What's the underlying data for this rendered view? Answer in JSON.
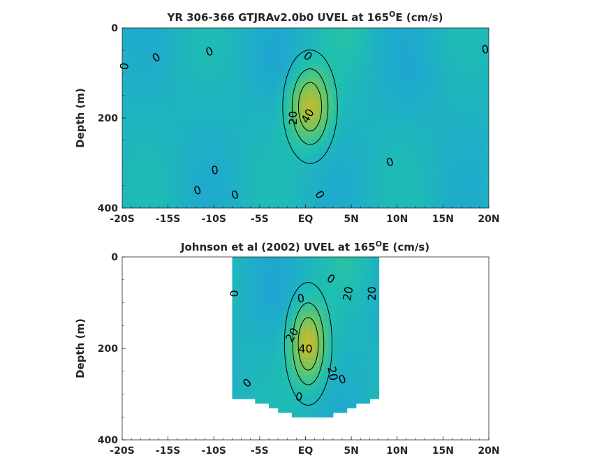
{
  "chart_data": [
    {
      "type": "heatmap",
      "title": "YR 306-366 GTJRAv2.0b0 UVEL at 165",
      "title_sup": "O",
      "title_suffix": "E (cm/s)",
      "xlabel": "",
      "ylabel": "Depth (m)",
      "xlim": [
        -20,
        20
      ],
      "ylim": [
        0,
        400
      ],
      "y_reversed": true,
      "x_ticks": [
        -20,
        -15,
        -10,
        -5,
        0,
        5,
        10,
        15,
        20
      ],
      "x_tick_labels": [
        "-20S",
        "-15S",
        "-10S",
        "-5S",
        "EQ",
        "5N",
        "10N",
        "15N",
        "20N"
      ],
      "y_ticks": [
        0,
        200,
        400
      ],
      "y_tick_labels": [
        "0",
        "200",
        "400"
      ],
      "colormap": {
        "min": -40,
        "max": 60,
        "colors": [
          "#3e26a8",
          "#1fa1d8",
          "#1fbfb0",
          "#62c86a",
          "#bcbc32",
          "#f9fb0f"
        ]
      },
      "core": {
        "lon": 0.5,
        "depth": 175,
        "max_speed": 48,
        "width_lon": 2.3,
        "width_depth": 75
      },
      "contour_labels": [
        {
          "text": "0",
          "lon": -19.8,
          "depth": 85,
          "angle": -80
        },
        {
          "text": "0",
          "lon": -16.3,
          "depth": 65,
          "angle": -30
        },
        {
          "text": "0",
          "lon": -10.5,
          "depth": 52,
          "angle": -20
        },
        {
          "text": "0",
          "lon": 0.3,
          "depth": 62,
          "angle": 40
        },
        {
          "text": "20",
          "lon": -1.4,
          "depth": 200,
          "angle": -90
        },
        {
          "text": "40",
          "lon": 0.2,
          "depth": 195,
          "angle": -60
        },
        {
          "text": "0",
          "lon": -9.9,
          "depth": 315,
          "angle": -10
        },
        {
          "text": "0",
          "lon": -11.8,
          "depth": 360,
          "angle": -20
        },
        {
          "text": "0",
          "lon": -7.7,
          "depth": 370,
          "angle": -20
        },
        {
          "text": "0",
          "lon": 1.6,
          "depth": 370,
          "angle": 60
        },
        {
          "text": "0",
          "lon": 9.2,
          "depth": 297,
          "angle": -15
        },
        {
          "text": "0",
          "lon": 19.6,
          "depth": 47,
          "angle": -10
        }
      ]
    },
    {
      "type": "heatmap",
      "title": "Johnson et al (2002) UVEL at 165",
      "title_sup": "O",
      "title_suffix": "E (cm/s)",
      "xlabel": "",
      "ylabel": "Depth (m)",
      "xlim": [
        -20,
        20
      ],
      "ylim": [
        0,
        400
      ],
      "y_reversed": true,
      "data_lon_range": [
        -8,
        8
      ],
      "x_ticks": [
        -20,
        -15,
        -10,
        -5,
        0,
        5,
        10,
        15,
        20
      ],
      "x_tick_labels": [
        "-20S",
        "-15S",
        "-10S",
        "-5S",
        "EQ",
        "5N",
        "10N",
        "15N",
        "20N"
      ],
      "y_ticks": [
        0,
        200,
        400
      ],
      "y_tick_labels": [
        "0",
        "200",
        "400"
      ],
      "core": {
        "lon": 0.3,
        "depth": 190,
        "max_speed": 50,
        "width_lon": 2.0,
        "width_depth": 80
      },
      "contour_labels": [
        {
          "text": "0",
          "lon": -7.8,
          "depth": 80,
          "angle": -90
        },
        {
          "text": "0",
          "lon": -0.5,
          "depth": 90,
          "angle": -10
        },
        {
          "text": "0",
          "lon": 2.8,
          "depth": 47,
          "angle": 30
        },
        {
          "text": "20",
          "lon": 4.6,
          "depth": 80,
          "angle": -80
        },
        {
          "text": "20",
          "lon": 7.2,
          "depth": 80,
          "angle": -90
        },
        {
          "text": "20",
          "lon": -1.5,
          "depth": 170,
          "angle": -60
        },
        {
          "text": "40",
          "lon": 0.0,
          "depth": 200,
          "angle": 0
        },
        {
          "text": "20",
          "lon": 3.0,
          "depth": 255,
          "angle": 80
        },
        {
          "text": "0",
          "lon": 4.0,
          "depth": 267,
          "angle": -20
        },
        {
          "text": "0",
          "lon": -6.4,
          "depth": 275,
          "angle": -40
        },
        {
          "text": "0",
          "lon": -0.7,
          "depth": 305,
          "angle": 10
        }
      ]
    }
  ]
}
